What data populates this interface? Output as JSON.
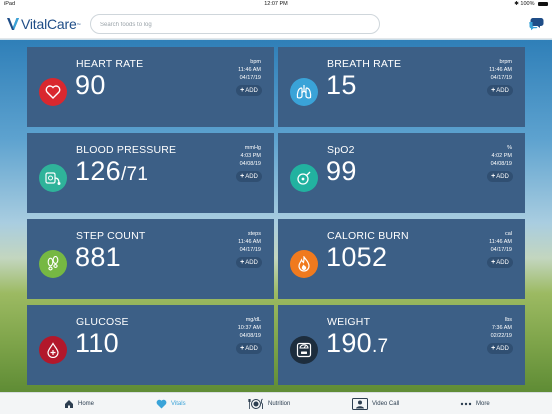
{
  "status_bar": {
    "device": "iPad",
    "time": "12:07 PM",
    "battery": "100%"
  },
  "header": {
    "app_name": "VitalCare",
    "trademark": "™",
    "search_placeholder": "Search foods to log"
  },
  "cards": [
    {
      "id": "heart",
      "title": "HEART RATE",
      "value": "90",
      "value_small": "",
      "unit": "bpm",
      "time": "11:46 AM",
      "date": "04/17/19",
      "add_label": "ADD",
      "icon": "heart-icon",
      "icon_color": "#d9282f"
    },
    {
      "id": "breath",
      "title": "BREATH RATE",
      "value": "15",
      "value_small": "",
      "unit": "brpm",
      "time": "11:46 AM",
      "date": "04/17/19",
      "add_label": "ADD",
      "icon": "lungs-icon",
      "icon_color": "#3aa3d8"
    },
    {
      "id": "bp",
      "title": "BLOOD PRESSURE",
      "value": "126",
      "value_small": "/71",
      "unit": "mmHg",
      "time": "4:03 PM",
      "date": "04/08/19",
      "add_label": "ADD",
      "icon": "blood-pressure-icon",
      "icon_color": "#2fb39a"
    },
    {
      "id": "spo2",
      "title": "SpO2",
      "value": "99",
      "value_small": "",
      "unit": "%",
      "time": "4:02 PM",
      "date": "04/08/19",
      "add_label": "ADD",
      "icon": "pulse-oximeter-icon",
      "icon_color": "#22b2a0"
    },
    {
      "id": "steps",
      "title": "STEP COUNT",
      "value": "881",
      "value_small": "",
      "unit": "steps",
      "time": "11:46 AM",
      "date": "04/17/19",
      "add_label": "ADD",
      "icon": "footprints-icon",
      "icon_color": "#76b843"
    },
    {
      "id": "calories",
      "title": "CALORIC BURN",
      "value": "1052",
      "value_small": "",
      "unit": "cal",
      "time": "11:46 AM",
      "date": "04/17/19",
      "add_label": "ADD",
      "icon": "flame-icon",
      "icon_color": "#f07a1e"
    },
    {
      "id": "glucose",
      "title": "GLUCOSE",
      "value": "110",
      "value_small": "",
      "unit": "mg/dL",
      "time": "10:37 AM",
      "date": "04/08/19",
      "add_label": "ADD",
      "icon": "blood-drop-icon",
      "icon_color": "#b2182b"
    },
    {
      "id": "weight",
      "title": "WEIGHT",
      "value": "190",
      "value_small": ".7",
      "unit": "lbs",
      "time": "7:36 AM",
      "date": "02/22/19",
      "add_label": "ADD",
      "icon": "scale-icon",
      "icon_color": "#1d2d3d"
    }
  ],
  "tabs": [
    {
      "label": "Home",
      "icon": "home-icon",
      "active": false
    },
    {
      "label": "Vitals",
      "icon": "heart-icon",
      "active": true
    },
    {
      "label": "Nutrition",
      "icon": "plate-icon",
      "active": false
    },
    {
      "label": "Video Call",
      "icon": "video-call-icon",
      "active": false
    },
    {
      "label": "More",
      "icon": "more-dots-icon",
      "active": false
    }
  ]
}
